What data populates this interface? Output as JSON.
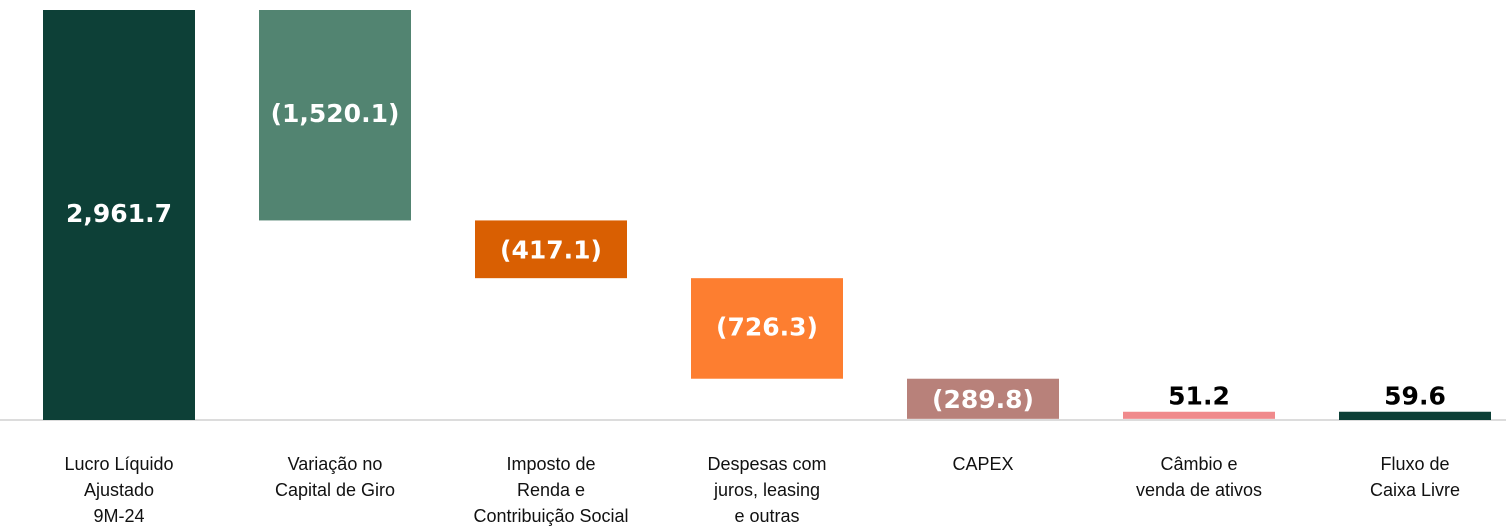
{
  "chart_data": {
    "type": "waterfall",
    "categories": [
      [
        "Lucro Líquido",
        "Ajustado",
        "9M-24"
      ],
      [
        "Variação no",
        "Capital de Giro"
      ],
      [
        "Imposto de",
        "Renda e",
        "Contribuição Social"
      ],
      [
        "Despesas com",
        "juros, leasing",
        "e outras"
      ],
      [
        "CAPEX"
      ],
      [
        "Câmbio e",
        "venda de ativos"
      ],
      [
        "Fluxo de",
        "Caixa Livre"
      ]
    ],
    "values": [
      2961.7,
      -1520.1,
      -417.1,
      -726.3,
      -289.8,
      51.2,
      59.6
    ],
    "value_labels": [
      "2,961.7",
      "(1,520.1)",
      "(417.1)",
      "(726.3)",
      "(289.8)",
      "51.2",
      "59.6"
    ],
    "is_total": [
      false,
      false,
      false,
      false,
      false,
      false,
      true
    ],
    "colors": [
      "#0d4037",
      "#528471",
      "#d95f02",
      "#fd7e30",
      "#b8817a",
      "#f08a8c",
      "#0d4037"
    ]
  }
}
